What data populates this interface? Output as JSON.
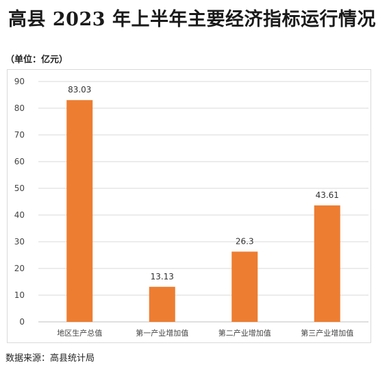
{
  "title": "高县 2023 年上半年主要经济指标运行情况",
  "unit_note": "（单位：亿元）",
  "source_note": "数据来源：高县统计局",
  "chart_data": {
    "type": "bar",
    "categories": [
      "地区生产总值",
      "第一产业增加值",
      "第二产业增加值",
      "第三产业增加值"
    ],
    "values": [
      83.03,
      13.13,
      26.3,
      43.61
    ],
    "value_labels": [
      "83.03",
      "13.13",
      "26.3",
      "43.61"
    ],
    "ylim": [
      0,
      90
    ],
    "yticks": [
      0,
      10,
      20,
      30,
      40,
      50,
      60,
      70,
      80,
      90
    ],
    "grid": true,
    "legend": "none",
    "bar_color": "#ED7D31"
  }
}
